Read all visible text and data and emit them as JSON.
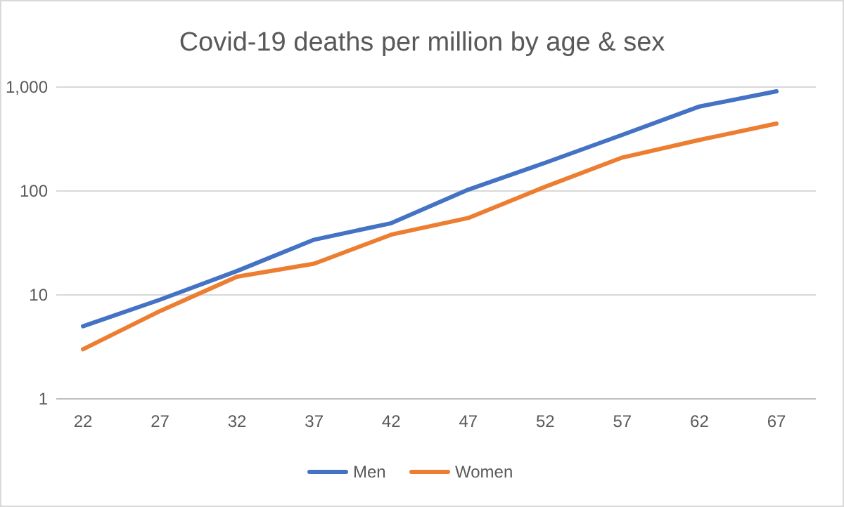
{
  "chart_data": {
    "type": "line",
    "title": "Covid-19 deaths per million by age & sex",
    "categories": [
      "22",
      "27",
      "32",
      "37",
      "42",
      "47",
      "52",
      "57",
      "62",
      "67"
    ],
    "series": [
      {
        "name": "Men",
        "color": "#4472c4",
        "values": [
          5,
          9,
          17,
          34,
          49,
          103,
          187,
          347,
          650,
          910
        ]
      },
      {
        "name": "Women",
        "color": "#ed7d31",
        "values": [
          3,
          7,
          15,
          20,
          38,
          55,
          110,
          210,
          310,
          445
        ]
      }
    ],
    "log": true,
    "ylim": [
      1,
      1000
    ],
    "yticks": [
      1,
      10,
      100,
      {
        "value": 1000,
        "label": "1,000"
      }
    ],
    "grid": "y",
    "legend": "bottom"
  }
}
